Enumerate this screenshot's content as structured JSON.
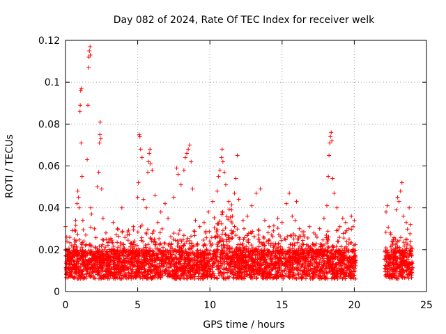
{
  "chart_data": {
    "type": "scatter",
    "title": "Day 082 of 2024, Rate Of TEC Index for receiver welk",
    "xlabel": "GPS time / hours",
    "ylabel": "ROTI / TECUs",
    "xlim": [
      0,
      25
    ],
    "ylim": [
      0,
      0.12
    ],
    "x_ticks": [
      0,
      5,
      10,
      15,
      20,
      25
    ],
    "x_tick_labels": [
      "0",
      "5",
      "10",
      "15",
      "20",
      "25"
    ],
    "y_ticks": [
      0,
      0.02,
      0.04,
      0.06,
      0.08,
      0.1,
      0.12
    ],
    "y_tick_labels": [
      "0",
      "0.02",
      "0.04",
      "0.06",
      "0.08",
      "0.1",
      "0.12"
    ],
    "grid": true,
    "marker": "plus",
    "color": "#ff0000",
    "data_gap_hours": [
      20.1,
      22.1
    ],
    "points": [
      [
        0.0,
        0.031
      ],
      [
        0.1,
        0.024
      ],
      [
        0.2,
        0.012
      ],
      [
        0.3,
        0.009
      ],
      [
        0.5,
        0.016
      ],
      [
        0.6,
        0.025
      ],
      [
        0.7,
        0.034
      ],
      [
        0.8,
        0.042
      ],
      [
        0.85,
        0.048
      ],
      [
        0.9,
        0.045
      ],
      [
        0.95,
        0.04
      ],
      [
        1.0,
        0.086
      ],
      [
        1.02,
        0.089
      ],
      [
        1.05,
        0.096
      ],
      [
        1.1,
        0.097
      ],
      [
        1.08,
        0.071
      ],
      [
        1.15,
        0.055
      ],
      [
        1.2,
        0.034
      ],
      [
        1.4,
        0.027
      ],
      [
        1.5,
        0.063
      ],
      [
        1.55,
        0.089
      ],
      [
        1.6,
        0.107
      ],
      [
        1.62,
        0.112
      ],
      [
        1.65,
        0.115
      ],
      [
        1.7,
        0.117
      ],
      [
        1.72,
        0.113
      ],
      [
        1.75,
        0.04
      ],
      [
        1.8,
        0.037
      ],
      [
        2.0,
        0.03
      ],
      [
        2.2,
        0.05
      ],
      [
        2.3,
        0.057
      ],
      [
        2.35,
        0.071
      ],
      [
        2.38,
        0.075
      ],
      [
        2.4,
        0.081
      ],
      [
        2.45,
        0.073
      ],
      [
        2.5,
        0.049
      ],
      [
        2.6,
        0.035
      ],
      [
        2.8,
        0.028
      ],
      [
        3.0,
        0.025
      ],
      [
        3.3,
        0.033
      ],
      [
        3.6,
        0.03
      ],
      [
        3.9,
        0.04
      ],
      [
        4.3,
        0.027
      ],
      [
        4.7,
        0.031
      ],
      [
        5.0,
        0.045
      ],
      [
        5.05,
        0.052
      ],
      [
        5.1,
        0.075
      ],
      [
        5.15,
        0.074
      ],
      [
        5.2,
        0.068
      ],
      [
        5.3,
        0.064
      ],
      [
        5.4,
        0.044
      ],
      [
        5.6,
        0.04
      ],
      [
        5.7,
        0.057
      ],
      [
        5.75,
        0.062
      ],
      [
        5.8,
        0.066
      ],
      [
        5.85,
        0.068
      ],
      [
        5.9,
        0.061
      ],
      [
        6.0,
        0.058
      ],
      [
        6.2,
        0.046
      ],
      [
        6.4,
        0.033
      ],
      [
        6.6,
        0.038
      ],
      [
        6.9,
        0.042
      ],
      [
        7.1,
        0.035
      ],
      [
        7.5,
        0.045
      ],
      [
        7.7,
        0.059
      ],
      [
        7.8,
        0.056
      ],
      [
        8.0,
        0.051
      ],
      [
        8.2,
        0.058
      ],
      [
        8.3,
        0.064
      ],
      [
        8.4,
        0.066
      ],
      [
        8.5,
        0.068
      ],
      [
        8.6,
        0.07
      ],
      [
        8.7,
        0.062
      ],
      [
        8.8,
        0.049
      ],
      [
        9.0,
        0.034
      ],
      [
        9.3,
        0.031
      ],
      [
        9.6,
        0.033
      ],
      [
        9.9,
        0.038
      ],
      [
        10.2,
        0.043
      ],
      [
        10.5,
        0.048
      ],
      [
        10.6,
        0.055
      ],
      [
        10.7,
        0.058
      ],
      [
        10.8,
        0.064
      ],
      [
        10.85,
        0.068
      ],
      [
        10.9,
        0.062
      ],
      [
        11.0,
        0.057
      ],
      [
        11.1,
        0.051
      ],
      [
        11.3,
        0.043
      ],
      [
        11.5,
        0.039
      ],
      [
        11.7,
        0.047
      ],
      [
        11.8,
        0.054
      ],
      [
        11.9,
        0.065
      ],
      [
        12.0,
        0.044
      ],
      [
        12.3,
        0.034
      ],
      [
        12.6,
        0.036
      ],
      [
        12.9,
        0.041
      ],
      [
        13.2,
        0.047
      ],
      [
        13.5,
        0.049
      ],
      [
        13.8,
        0.034
      ],
      [
        14.1,
        0.031
      ],
      [
        14.4,
        0.029
      ],
      [
        14.7,
        0.035
      ],
      [
        15.0,
        0.033
      ],
      [
        15.3,
        0.042
      ],
      [
        15.5,
        0.047
      ],
      [
        15.7,
        0.036
      ],
      [
        15.9,
        0.034
      ],
      [
        16.0,
        0.043
      ],
      [
        16.2,
        0.03
      ],
      [
        16.5,
        0.027
      ],
      [
        16.9,
        0.031
      ],
      [
        17.2,
        0.028
      ],
      [
        17.6,
        0.03
      ],
      [
        17.9,
        0.035
      ],
      [
        18.1,
        0.041
      ],
      [
        18.2,
        0.055
      ],
      [
        18.25,
        0.065
      ],
      [
        18.3,
        0.071
      ],
      [
        18.35,
        0.074
      ],
      [
        18.4,
        0.076
      ],
      [
        18.45,
        0.072
      ],
      [
        18.5,
        0.054
      ],
      [
        18.6,
        0.047
      ],
      [
        18.8,
        0.04
      ],
      [
        19.0,
        0.031
      ],
      [
        19.2,
        0.035
      ],
      [
        19.4,
        0.033
      ],
      [
        19.6,
        0.03
      ],
      [
        19.8,
        0.036
      ],
      [
        20.0,
        0.034
      ],
      [
        22.2,
        0.038
      ],
      [
        22.3,
        0.041
      ],
      [
        22.5,
        0.028
      ],
      [
        22.7,
        0.025
      ],
      [
        22.9,
        0.039
      ],
      [
        23.0,
        0.045
      ],
      [
        23.1,
        0.043
      ],
      [
        23.2,
        0.048
      ],
      [
        23.3,
        0.052
      ],
      [
        23.4,
        0.036
      ],
      [
        23.6,
        0.033
      ],
      [
        23.8,
        0.04
      ],
      [
        23.9,
        0.032
      ]
    ]
  }
}
